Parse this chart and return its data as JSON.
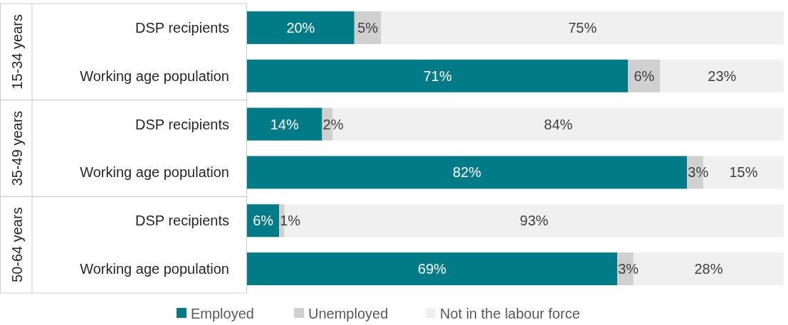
{
  "chart_data": {
    "type": "bar",
    "orientation": "horizontal",
    "stacked": true,
    "legend": "bottom",
    "categories": [
      "DSP recipients",
      "Working age population",
      "DSP recipients",
      "Working age population",
      "DSP recipients",
      "Working age population"
    ],
    "annotations": [
      "15-34 years",
      "35-49 years",
      "50-64 years"
    ],
    "series": [
      {
        "name": "Employed",
        "color": "#007b87",
        "values": [
          20,
          71,
          14,
          82,
          6,
          69
        ],
        "value_labels": [
          "20%",
          "71%",
          "14%",
          "82%",
          "6%",
          "69%"
        ]
      },
      {
        "name": "Unemployed",
        "color": "#d0d0d0",
        "values": [
          5,
          6,
          2,
          3,
          1,
          3
        ],
        "value_labels": [
          "5%",
          "6%",
          "2%",
          "3%",
          "1%",
          "3%"
        ]
      },
      {
        "name": "Not in the labour force",
        "color": "#f0f0f0",
        "values": [
          75,
          23,
          84,
          15,
          93,
          28
        ],
        "value_labels": [
          "75%",
          "23%",
          "84%",
          "15%",
          "93%",
          "28%"
        ]
      }
    ]
  }
}
